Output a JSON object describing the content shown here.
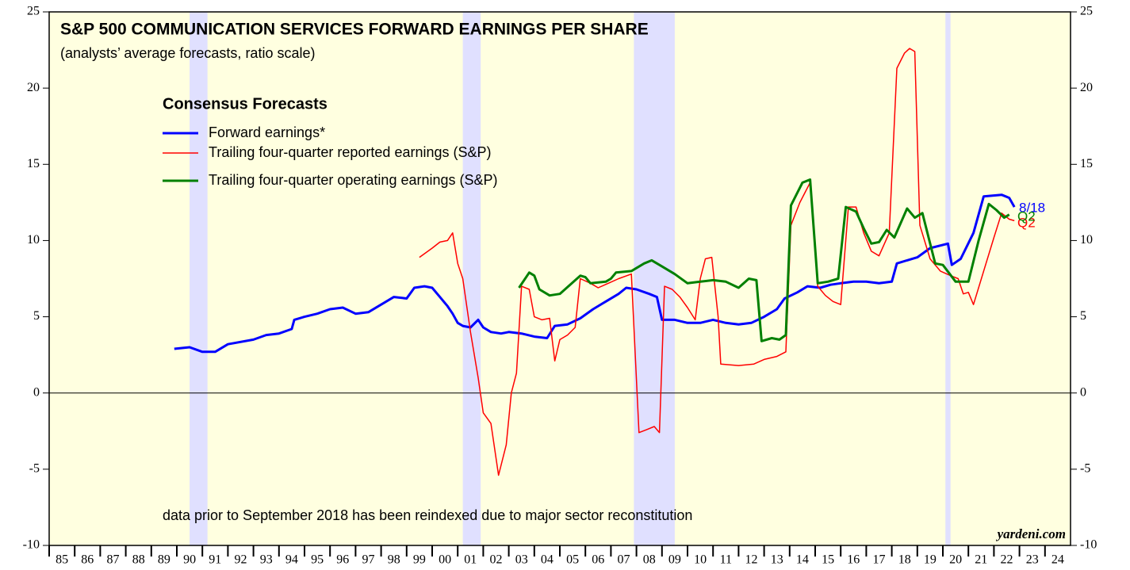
{
  "chart_data": {
    "type": "line",
    "title": "S&P 500 COMMUNICATION SERVICES FORWARD EARNINGS PER SHARE",
    "subtitle": "(analysts’ average forecasts, ratio scale)",
    "legend_title": "Consensus Forecasts",
    "annotation": "data prior to September 2018 has been reindexed due to major sector reconstitution",
    "source": "yardeni.com",
    "end_labels": [
      {
        "text": "8/18",
        "color": "#0000ff"
      },
      {
        "text": "Q2",
        "color": "#ff0000"
      },
      {
        "text": "Q2",
        "color": "#008000"
      }
    ],
    "xlim": [
      1985,
      2025
    ],
    "ylim": [
      -10,
      25
    ],
    "yticks": [
      -10,
      -5,
      0,
      5,
      10,
      15,
      20,
      25
    ],
    "xticks": [
      {
        "value": 1985,
        "label": "85"
      },
      {
        "value": 1986,
        "label": "86"
      },
      {
        "value": 1987,
        "label": "87"
      },
      {
        "value": 1988,
        "label": "88"
      },
      {
        "value": 1989,
        "label": "89"
      },
      {
        "value": 1990,
        "label": "90"
      },
      {
        "value": 1991,
        "label": "91"
      },
      {
        "value": 1992,
        "label": "92"
      },
      {
        "value": 1993,
        "label": "93"
      },
      {
        "value": 1994,
        "label": "94"
      },
      {
        "value": 1995,
        "label": "95"
      },
      {
        "value": 1996,
        "label": "96"
      },
      {
        "value": 1997,
        "label": "97"
      },
      {
        "value": 1998,
        "label": "98"
      },
      {
        "value": 1999,
        "label": "99"
      },
      {
        "value": 2000,
        "label": "00"
      },
      {
        "value": 2001,
        "label": "01"
      },
      {
        "value": 2002,
        "label": "02"
      },
      {
        "value": 2003,
        "label": "03"
      },
      {
        "value": 2004,
        "label": "04"
      },
      {
        "value": 2005,
        "label": "05"
      },
      {
        "value": 2006,
        "label": "06"
      },
      {
        "value": 2007,
        "label": "07"
      },
      {
        "value": 2008,
        "label": "08"
      },
      {
        "value": 2009,
        "label": "09"
      },
      {
        "value": 2010,
        "label": "10"
      },
      {
        "value": 2011,
        "label": "11"
      },
      {
        "value": 2012,
        "label": "12"
      },
      {
        "value": 2013,
        "label": "13"
      },
      {
        "value": 2014,
        "label": "14"
      },
      {
        "value": 2015,
        "label": "15"
      },
      {
        "value": 2016,
        "label": "16"
      },
      {
        "value": 2017,
        "label": "17"
      },
      {
        "value": 2018,
        "label": "18"
      },
      {
        "value": 2019,
        "label": "19"
      },
      {
        "value": 2020,
        "label": "20"
      },
      {
        "value": 2021,
        "label": "21"
      },
      {
        "value": 2022,
        "label": "22"
      },
      {
        "value": 2023,
        "label": "23"
      },
      {
        "value": 2024,
        "label": "24"
      }
    ],
    "recessions": [
      [
        1990.5,
        1991.2
      ],
      [
        2001.2,
        2001.9
      ],
      [
        2007.9,
        2009.5
      ],
      [
        2020.1,
        2020.3
      ]
    ],
    "background_color": "#ffffe0",
    "recession_color": "#e0e0ff",
    "series": [
      {
        "name": "Forward earnings*",
        "color": "#0000ff",
        "width": 3,
        "x": [
          1989.9,
          1990.5,
          1991,
          1991.5,
          1992,
          1993,
          1993.5,
          1994,
          1994.5,
          1994.6,
          1995,
          1995.5,
          1996,
          1996.5,
          1997,
          1997.5,
          1998,
          1998.5,
          1999,
          1999.3,
          1999.7,
          2000,
          2000.3,
          2000.6,
          2000.8,
          2001,
          2001.2,
          2001.5,
          2001.8,
          2002,
          2002.3,
          2002.7,
          2003,
          2003.5,
          2004,
          2004.5,
          2004.8,
          2005.3,
          2005.8,
          2006.3,
          2006.8,
          2007.3,
          2007.6,
          2008,
          2008.5,
          2008.8,
          2009,
          2009.5,
          2010,
          2010.5,
          2011,
          2011.5,
          2012,
          2012.5,
          2013,
          2013.5,
          2013.8,
          2014.3,
          2014.7,
          2015.2,
          2015.6,
          2016,
          2016.5,
          2017,
          2017.5,
          2018,
          2018.2,
          2018.6,
          2019,
          2019.5,
          2020.2,
          2020.35,
          2020.7,
          2021.2,
          2021.6,
          2022.3,
          2022.6,
          2022.8
        ],
        "values": [
          2.9,
          3.0,
          2.7,
          2.7,
          3.2,
          3.5,
          3.8,
          3.9,
          4.2,
          4.8,
          5.0,
          5.2,
          5.5,
          5.6,
          5.2,
          5.3,
          5.8,
          6.3,
          6.2,
          6.9,
          7.0,
          6.9,
          6.3,
          5.7,
          5.2,
          4.6,
          4.4,
          4.3,
          4.8,
          4.3,
          4.0,
          3.9,
          4.0,
          3.9,
          3.7,
          3.6,
          4.4,
          4.5,
          4.9,
          5.5,
          6.0,
          6.5,
          6.9,
          6.8,
          6.5,
          6.3,
          4.8,
          4.8,
          4.6,
          4.6,
          4.8,
          4.6,
          4.5,
          4.6,
          5.0,
          5.5,
          6.2,
          6.6,
          7.0,
          6.9,
          7.1,
          7.2,
          7.3,
          7.3,
          7.2,
          7.3,
          8.5,
          8.7,
          8.9,
          9.5,
          9.8,
          8.4,
          8.8,
          10.5,
          12.9,
          13.0,
          12.8,
          12.2
        ]
      },
      {
        "name": "Trailing four-quarter reported earnings (S&P)",
        "color": "#ff0000",
        "width": 1.5,
        "x": [
          1999.5,
          2000,
          2000.3,
          2000.6,
          2000.8,
          2001,
          2001.2,
          2001.5,
          2001.8,
          2002,
          2002.3,
          2002.6,
          2002.9,
          2003.1,
          2003.3,
          2003.5,
          2003.8,
          2004,
          2004.3,
          2004.6,
          2004.8,
          2005,
          2005.3,
          2005.6,
          2005.8,
          2006.2,
          2006.5,
          2006.9,
          2007.3,
          2007.8,
          2008.1,
          2008.4,
          2008.7,
          2008.9,
          2009.1,
          2009.4,
          2009.7,
          2010,
          2010.3,
          2010.5,
          2010.7,
          2010.95,
          2011.2,
          2011.3,
          2012,
          2012.6,
          2013,
          2013.5,
          2013.85,
          2014.05,
          2014.4,
          2014.8,
          2015.1,
          2015.4,
          2015.7,
          2016,
          2016.3,
          2016.6,
          2016.9,
          2017.2,
          2017.5,
          2017.9,
          2018.2,
          2018.5,
          2018.7,
          2018.9,
          2019.1,
          2019.5,
          2019.9,
          2020.3,
          2020.6,
          2020.8,
          2021,
          2021.2,
          2021.6,
          2022,
          2022.3,
          2022.6,
          2022.8
        ],
        "values": [
          8.9,
          9.5,
          9.9,
          10.0,
          10.5,
          8.5,
          7.5,
          4.0,
          1.0,
          -1.3,
          -2.0,
          -5.4,
          -3.4,
          0.0,
          1.3,
          7.0,
          6.8,
          5.0,
          4.8,
          4.9,
          2.1,
          3.5,
          3.8,
          4.3,
          7.5,
          7.2,
          6.9,
          7.2,
          7.5,
          7.8,
          -2.6,
          -2.4,
          -2.2,
          -2.6,
          7.0,
          6.8,
          6.3,
          5.6,
          4.8,
          7.5,
          8.8,
          8.9,
          5.0,
          1.9,
          1.8,
          1.9,
          2.2,
          2.4,
          2.7,
          11.0,
          12.5,
          13.8,
          7.0,
          6.4,
          6.0,
          5.8,
          12.2,
          12.2,
          10.5,
          9.3,
          9.0,
          10.5,
          21.3,
          22.3,
          22.6,
          22.4,
          11.0,
          8.8,
          8.0,
          7.7,
          7.5,
          6.5,
          6.6,
          5.8,
          8.0,
          10.2,
          11.8,
          11.4,
          11.3
        ]
      },
      {
        "name": "Trailing four-quarter operating earnings (S&P)",
        "color": "#008000",
        "width": 3,
        "x": [
          2003.4,
          2003.8,
          2004,
          2004.2,
          2004.6,
          2005,
          2005.4,
          2005.8,
          2006,
          2006.2,
          2006.8,
          2007,
          2007.2,
          2007.8,
          2008.3,
          2008.6,
          2009,
          2009.5,
          2010,
          2010.5,
          2011,
          2011.5,
          2012,
          2012.4,
          2012.7,
          2012.9,
          2013.3,
          2013.6,
          2013.85,
          2014.05,
          2014.5,
          2014.8,
          2015.1,
          2015.5,
          2015.9,
          2016.2,
          2016.6,
          2016.9,
          2017.2,
          2017.5,
          2017.8,
          2018.1,
          2018.6,
          2018.9,
          2019.2,
          2019.7,
          2020,
          2020.5,
          2021,
          2021.4,
          2021.8,
          2022.1,
          2022.4,
          2022.6
        ],
        "values": [
          6.9,
          7.9,
          7.7,
          6.8,
          6.4,
          6.5,
          7.1,
          7.7,
          7.6,
          7.2,
          7.3,
          7.5,
          7.9,
          8.0,
          8.5,
          8.7,
          8.3,
          7.8,
          7.2,
          7.3,
          7.4,
          7.3,
          6.9,
          7.5,
          7.4,
          3.4,
          3.6,
          3.5,
          3.8,
          12.3,
          13.8,
          14.0,
          7.2,
          7.3,
          7.5,
          12.2,
          11.9,
          10.8,
          9.8,
          9.9,
          10.7,
          10.2,
          12.1,
          11.5,
          11.8,
          8.5,
          8.4,
          7.3,
          7.3,
          10.0,
          12.4,
          12.0,
          11.5,
          11.7
        ]
      }
    ]
  }
}
